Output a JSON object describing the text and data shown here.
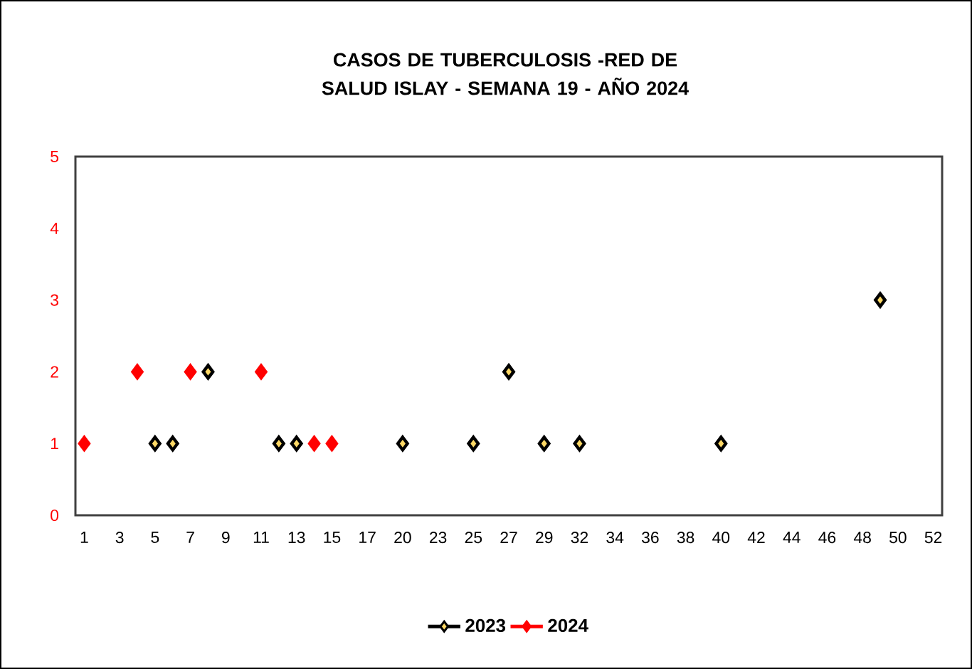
{
  "chart_data": {
    "type": "scatter",
    "title": "CASOS DE TUBERCULOSIS -RED DE SALUD ISLAY - SEMANA 19 -  AÑO 2024",
    "categories": [
      "1",
      null,
      "3",
      null,
      "5",
      null,
      "7",
      null,
      "9",
      null,
      "11",
      null,
      "13",
      null,
      "15",
      null,
      "17",
      null,
      "20",
      null,
      "23",
      null,
      "25",
      null,
      "27",
      null,
      "29",
      null,
      "32",
      null,
      "34",
      null,
      "36",
      null,
      "38",
      null,
      "40",
      null,
      "42",
      null,
      "44",
      null,
      "46",
      null,
      "48",
      null,
      "50",
      null,
      "52"
    ],
    "series": [
      {
        "name": "2023",
        "color": "#ffd966",
        "values": [
          null,
          null,
          null,
          null,
          1,
          1,
          null,
          2,
          null,
          null,
          null,
          1,
          1,
          null,
          null,
          null,
          null,
          null,
          1,
          null,
          null,
          null,
          1,
          null,
          2,
          null,
          1,
          null,
          1,
          null,
          null,
          null,
          null,
          null,
          null,
          null,
          1,
          null,
          null,
          null,
          null,
          null,
          null,
          null,
          null,
          3,
          null,
          null,
          null
        ]
      },
      {
        "name": "2024",
        "color": "#ff0000",
        "values": [
          1,
          null,
          null,
          2,
          null,
          null,
          2,
          null,
          null,
          null,
          2,
          null,
          null,
          1,
          1,
          null,
          null,
          null,
          null,
          null,
          null,
          null,
          null,
          null,
          null,
          null,
          null,
          null,
          null,
          null,
          null,
          null,
          null,
          null,
          null,
          null,
          null,
          null,
          null,
          null,
          null,
          null,
          null,
          null,
          null,
          null,
          null,
          null,
          null
        ]
      }
    ],
    "ylim": [
      0,
      5
    ],
    "yticks": [
      0,
      1,
      2,
      3,
      4,
      5
    ],
    "marker": "diamond",
    "legend": "bottom"
  }
}
